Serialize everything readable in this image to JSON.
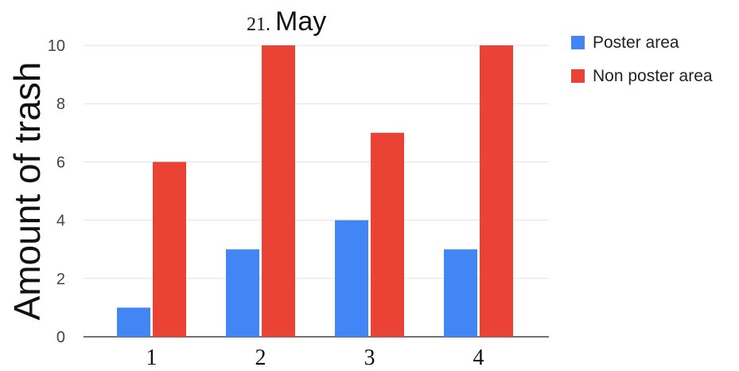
{
  "chart_data": {
    "type": "bar",
    "title_number": "21.",
    "title_word": "May",
    "ylabel": "Amount of trash",
    "xlabel": "",
    "categories": [
      "1",
      "2",
      "3",
      "4"
    ],
    "series": [
      {
        "name": "Poster area",
        "color": "#4285f4",
        "values": [
          1,
          3,
          4,
          3
        ]
      },
      {
        "name": "Non poster area",
        "color": "#ea4335",
        "values": [
          6,
          10,
          7,
          10
        ]
      }
    ],
    "ylim": [
      0,
      10
    ],
    "yticks": [
      0,
      2,
      4,
      6,
      8,
      10
    ],
    "grid": true,
    "legend_position": "top-right"
  }
}
